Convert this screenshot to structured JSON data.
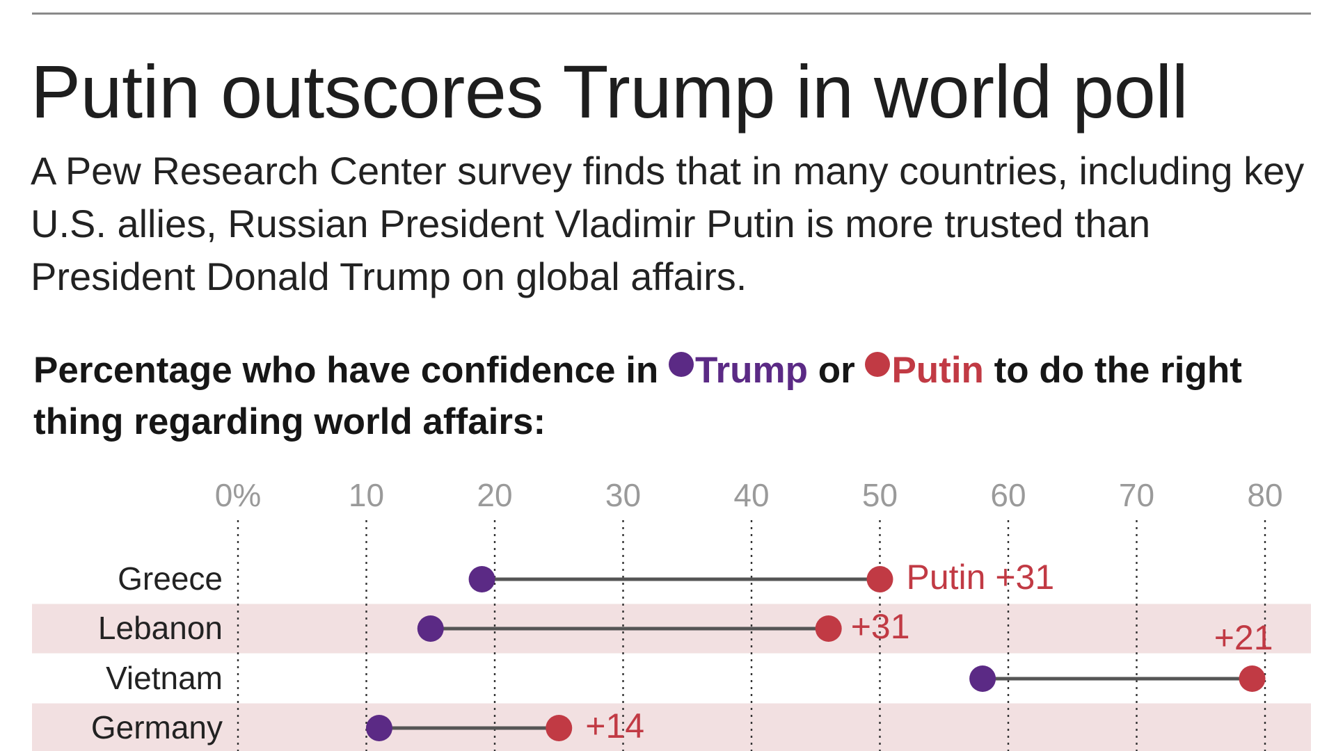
{
  "title": "Putin outscores Trump in world poll",
  "subtitle": "A Pew Research Center survey finds that in many countries, including key U.S. allies, Russian President Vladimir Putin is more trusted than President Donald Trump on global affairs.",
  "heading": {
    "prefix": "Percentage who have confidence in ",
    "trump": "Trump",
    "or": " or ",
    "putin": "Putin",
    "suffix": " to do the right thing regarding world affairs:"
  },
  "colors": {
    "trump": "#5b2a85",
    "putin": "#c13a44",
    "band": "#f2e0e1",
    "connector": "#555555",
    "tick": "#9a9a9a"
  },
  "chart_data": {
    "type": "dot-range",
    "title": "Percentage who have confidence in Trump or Putin to do the right thing regarding world affairs:",
    "xlim": [
      0,
      80
    ],
    "tick_labels": [
      "0%",
      "10",
      "20",
      "30",
      "40",
      "50",
      "60",
      "70",
      "80"
    ],
    "ticks": [
      0,
      10,
      20,
      30,
      40,
      50,
      60,
      70,
      80
    ],
    "grid": true,
    "legend": [
      {
        "name": "Trump",
        "color": "#5b2a85"
      },
      {
        "name": "Putin",
        "color": "#c13a44"
      }
    ],
    "categories": [
      "Greece",
      "Lebanon",
      "Vietnam",
      "Germany"
    ],
    "series": [
      {
        "name": "Trump",
        "values": [
          19,
          15,
          58,
          11
        ]
      },
      {
        "name": "Putin",
        "values": [
          50,
          46,
          79,
          25
        ]
      }
    ],
    "annotations": [
      "Putin +31",
      "+31",
      "+21",
      "+14"
    ]
  }
}
